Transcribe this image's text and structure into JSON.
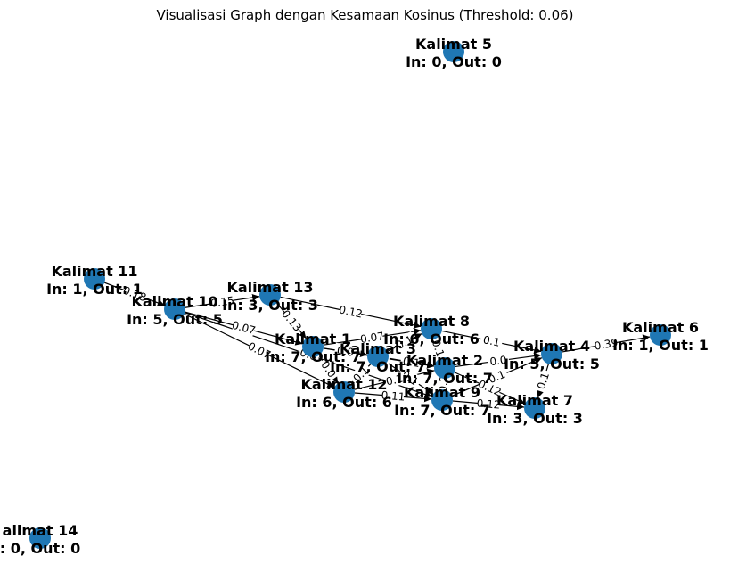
{
  "title": "Visualisasi Graph dengan Kesamaan Kosinus (Threshold: 0.06)",
  "colors": {
    "node": "#1f77b4",
    "edge": "#000000",
    "label_bg": "#ffffff"
  },
  "nodes": [
    {
      "id": "K1",
      "name": "Kalimat 1",
      "stats": "In: 7, Out: 7"
    },
    {
      "id": "K2",
      "name": "Kalimat 2",
      "stats": "In: 7, Out: 7"
    },
    {
      "id": "K3",
      "name": "Kalimat 3",
      "stats": "In: 7, Out: 7"
    },
    {
      "id": "K4",
      "name": "Kalimat 4",
      "stats": "In: 5, Out: 5"
    },
    {
      "id": "K5",
      "name": "Kalimat 5",
      "stats": "In: 0, Out: 0"
    },
    {
      "id": "K6",
      "name": "Kalimat 6",
      "stats": "In: 1, Out: 1"
    },
    {
      "id": "K7",
      "name": "Kalimat 7",
      "stats": "In: 3, Out: 3"
    },
    {
      "id": "K8",
      "name": "Kalimat 8",
      "stats": "In: 6, Out: 6"
    },
    {
      "id": "K9",
      "name": "Kalimat 9",
      "stats": "In: 7, Out: 7"
    },
    {
      "id": "K10",
      "name": "Kalimat 10",
      "stats": "In: 5, Out: 5"
    },
    {
      "id": "K11",
      "name": "Kalimat 11",
      "stats": "In: 1, Out: 1"
    },
    {
      "id": "K12",
      "name": "Kalimat 12",
      "stats": "In: 6, Out: 6"
    },
    {
      "id": "K13",
      "name": "Kalimat 13",
      "stats": "In: 3, Out: 3"
    },
    {
      "id": "K14",
      "name": "alimat 14",
      "stats": ": 0, Out: 0"
    }
  ],
  "edges": [
    {
      "from": "K11",
      "to": "K10",
      "label": "0.18"
    },
    {
      "from": "K10",
      "to": "K13",
      "label": "0.15"
    },
    {
      "from": "K10",
      "to": "K1",
      "label": "0.07"
    },
    {
      "from": "K10",
      "to": "K12",
      "label": "0.07"
    },
    {
      "from": "K10",
      "to": "K9",
      "label": "0.0"
    },
    {
      "from": "K13",
      "to": "K8",
      "label": "0.12"
    },
    {
      "from": "K13",
      "to": "K1",
      "label": "0.13"
    },
    {
      "from": "K1",
      "to": "K3",
      "label": "0.0"
    },
    {
      "from": "K1",
      "to": "K12",
      "label": "0.0"
    },
    {
      "from": "K1",
      "to": "K8",
      "label": "0.07"
    },
    {
      "from": "K1",
      "to": "K2",
      "label": "0.1"
    },
    {
      "from": "K3",
      "to": "K8",
      "label": "0.1"
    },
    {
      "from": "K3",
      "to": "K2",
      "label": "0.1"
    },
    {
      "from": "K3",
      "to": "K9",
      "label": "0.1"
    },
    {
      "from": "K3",
      "to": "K12",
      "label": "0.1"
    },
    {
      "from": "K8",
      "to": "K2",
      "label": "0.1"
    },
    {
      "from": "K8",
      "to": "K4",
      "label": "0.1"
    },
    {
      "from": "K2",
      "to": "K4",
      "label": "0.0"
    },
    {
      "from": "K2",
      "to": "K7",
      "label": "0.12"
    },
    {
      "from": "K2",
      "to": "K9",
      "label": "0.2"
    },
    {
      "from": "K12",
      "to": "K9",
      "label": "0.11"
    },
    {
      "from": "K12",
      "to": "K2",
      "label": "0.1"
    },
    {
      "from": "K9",
      "to": "K4",
      "label": "0.1"
    },
    {
      "from": "K9",
      "to": "K7",
      "label": "0.12"
    },
    {
      "from": "K4",
      "to": "K6",
      "label": "0.39"
    },
    {
      "from": "K4",
      "to": "K7",
      "label": "0.1"
    }
  ]
}
